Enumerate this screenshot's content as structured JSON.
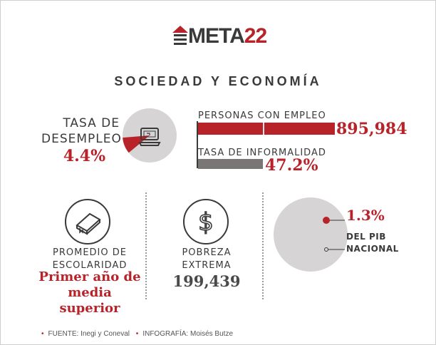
{
  "logo": {
    "text": "META",
    "number": "22"
  },
  "section_title": "SOCIEDAD Y ECONOMÍA",
  "unemployment": {
    "label_line1": "TASA DE",
    "label_line2": "DESEMPLEO",
    "value": "4.4%",
    "pie_fraction": 0.044,
    "icon": "computer-icon"
  },
  "employment": {
    "label": "PERSONAS CON EMPLEO",
    "value": "895,984"
  },
  "informality": {
    "label": "TASA DE INFORMALIDAD",
    "value": "47.2%",
    "fraction": 0.472
  },
  "schooling": {
    "icon": "book-icon",
    "label_line1": "PROMEDIO DE",
    "label_line2": "ESCOLARIDAD",
    "value_line1": "Primer año de",
    "value_line2": "media superior"
  },
  "poverty": {
    "icon": "dollar-icon",
    "label_line1": "POBREZA",
    "label_line2": "EXTREMA",
    "value": "199,439"
  },
  "pib": {
    "value": "1.3%",
    "label_line1": "DEL PIB",
    "label_line2": "NACIONAL",
    "fraction": 0.013
  },
  "footer": {
    "source": "FUENTE: Inegi y Coneval",
    "credit": "INFOGRAFÍA: Moisés Butze"
  },
  "colors": {
    "accent_red": "#b8232a",
    "dark_text": "#3a3a3a",
    "light_gray": "#d6d4d4",
    "bar_gray": "#7a7676"
  }
}
